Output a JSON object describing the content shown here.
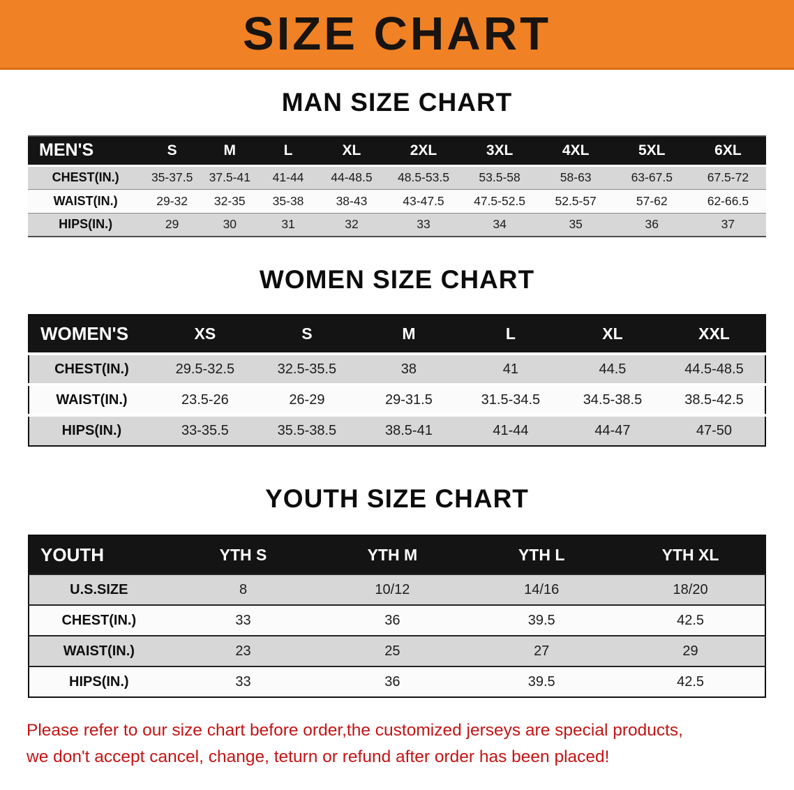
{
  "banner": {
    "title": "SIZE CHART"
  },
  "colors": {
    "banner_bg": "#f08124",
    "banner_edge": "#d96c12",
    "table_header_bg": "#141414",
    "row_gray": "#d7d7d7",
    "row_light": "#fbfbfb",
    "footer_text": "#c41414"
  },
  "sections": [
    {
      "heading": "MAN SIZE CHART",
      "table": {
        "header": [
          "MEN'S",
          "S",
          "M",
          "L",
          "XL",
          "2XL",
          "3XL",
          "4XL",
          "5XL",
          "6XL"
        ],
        "rows": [
          [
            "CHEST(IN.)",
            "35-37.5",
            "37.5-41",
            "41-44",
            "44-48.5",
            "48.5-53.5",
            "53.5-58",
            "58-63",
            "63-67.5",
            "67.5-72"
          ],
          [
            "WAIST(IN.)",
            "29-32",
            "32-35",
            "35-38",
            "38-43",
            "43-47.5",
            "47.5-52.5",
            "52.5-57",
            "57-62",
            "62-66.5"
          ],
          [
            "HIPS(IN.)",
            "29",
            "30",
            "31",
            "32",
            "33",
            "34",
            "35",
            "36",
            "37"
          ]
        ]
      }
    },
    {
      "heading": "WOMEN SIZE CHART",
      "table": {
        "header": [
          "WOMEN'S",
          "XS",
          "S",
          "M",
          "L",
          "XL",
          "XXL"
        ],
        "rows": [
          [
            "CHEST(IN.)",
            "29.5-32.5",
            "32.5-35.5",
            "38",
            "41",
            "44.5",
            "44.5-48.5"
          ],
          [
            "WAIST(IN.)",
            "23.5-26",
            "26-29",
            "29-31.5",
            "31.5-34.5",
            "34.5-38.5",
            "38.5-42.5"
          ],
          [
            "HIPS(IN.)",
            "33-35.5",
            "35.5-38.5",
            "38.5-41",
            "41-44",
            "44-47",
            "47-50"
          ]
        ]
      }
    },
    {
      "heading": "YOUTH SIZE CHART",
      "table": {
        "header": [
          "YOUTH",
          "YTH S",
          "YTH M",
          "YTH L",
          "YTH XL"
        ],
        "rows": [
          [
            "U.S.SIZE",
            "8",
            "10/12",
            "14/16",
            "18/20"
          ],
          [
            "CHEST(IN.)",
            "33",
            "36",
            "39.5",
            "42.5"
          ],
          [
            "WAIST(IN.)",
            "23",
            "25",
            "27",
            "29"
          ],
          [
            "HIPS(IN.)",
            "33",
            "36",
            "39.5",
            "42.5"
          ]
        ]
      }
    }
  ],
  "footer": {
    "line1": "Please refer to our size chart before order,the customized jerseys are special products,",
    "line2": "we don't accept cancel, change, teturn or refund after order has been placed!"
  }
}
